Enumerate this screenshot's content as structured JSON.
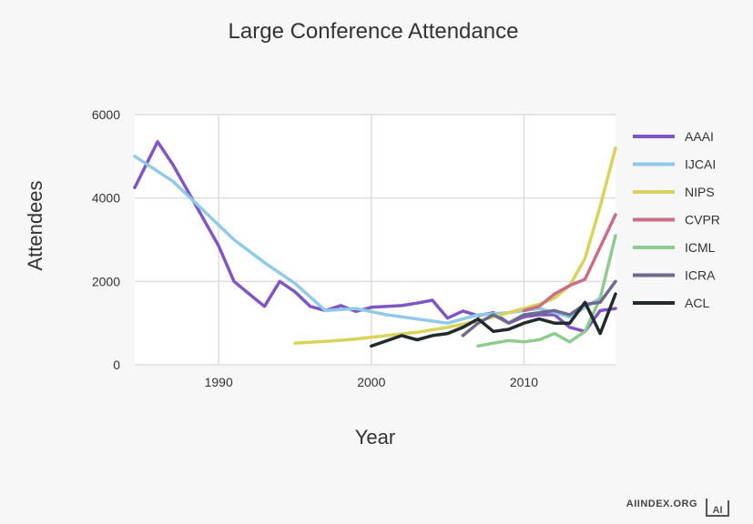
{
  "chart_data": {
    "type": "line",
    "title": "Large Conference Attendance",
    "xlabel": "Year",
    "ylabel": "Attendees",
    "xlim": [
      1984.5,
      2016
    ],
    "ylim": [
      0,
      6000
    ],
    "x_ticks": [
      1990,
      2000,
      2010
    ],
    "y_ticks": [
      0,
      2000,
      4000,
      6000
    ],
    "grid": true,
    "legend_position": "right",
    "series": [
      {
        "name": "AAAI",
        "color": "#7e57c2",
        "points": [
          [
            1984.5,
            4250
          ],
          [
            1986,
            5350
          ],
          [
            1987,
            4800
          ],
          [
            1988,
            4150
          ],
          [
            1989,
            3500
          ],
          [
            1990,
            2850
          ],
          [
            1991,
            2000
          ],
          [
            1992,
            1700
          ],
          [
            1993,
            1400
          ],
          [
            1994,
            2000
          ],
          [
            1995,
            1750
          ],
          [
            1996,
            1400
          ],
          [
            1997,
            1300
          ],
          [
            1998,
            1420
          ],
          [
            1999,
            1280
          ],
          [
            2000,
            1380
          ],
          [
            2002,
            1420
          ],
          [
            2003,
            1480
          ],
          [
            2004,
            1550
          ],
          [
            2005,
            1120
          ],
          [
            2006,
            1290
          ],
          [
            2007,
            1180
          ],
          [
            2008,
            1250
          ],
          [
            2009,
            1000
          ],
          [
            2010,
            1150
          ],
          [
            2011,
            1200
          ],
          [
            2012,
            1200
          ],
          [
            2013,
            900
          ],
          [
            2014,
            800
          ],
          [
            2015,
            1300
          ],
          [
            2016,
            1350
          ]
        ]
      },
      {
        "name": "IJCAI",
        "color": "#90cae6",
        "points": [
          [
            1984.5,
            5000
          ],
          [
            1987,
            4400
          ],
          [
            1989,
            3700
          ],
          [
            1991,
            3000
          ],
          [
            1993,
            2450
          ],
          [
            1995,
            1950
          ],
          [
            1997,
            1300
          ],
          [
            1999,
            1350
          ],
          [
            2001,
            1200
          ],
          [
            2003,
            1100
          ],
          [
            2005,
            1000
          ],
          [
            2007,
            1200
          ],
          [
            2009,
            1250
          ],
          [
            2011,
            1350
          ],
          [
            2013,
            1150
          ],
          [
            2015,
            1600
          ]
        ]
      },
      {
        "name": "NIPS",
        "color": "#d8d35b",
        "points": [
          [
            1995,
            520
          ],
          [
            1997,
            560
          ],
          [
            1999,
            620
          ],
          [
            2001,
            700
          ],
          [
            2003,
            780
          ],
          [
            2005,
            900
          ],
          [
            2007,
            1050
          ],
          [
            2009,
            1250
          ],
          [
            2011,
            1450
          ],
          [
            2012,
            1600
          ],
          [
            2013,
            1900
          ],
          [
            2014,
            2550
          ],
          [
            2015,
            3800
          ],
          [
            2016,
            5200
          ]
        ]
      },
      {
        "name": "CVPR",
        "color": "#c96d89",
        "points": [
          [
            2010,
            1300
          ],
          [
            2011,
            1400
          ],
          [
            2012,
            1700
          ],
          [
            2013,
            1900
          ],
          [
            2014,
            2050
          ],
          [
            2016,
            3600
          ]
        ]
      },
      {
        "name": "ICML",
        "color": "#8fcb8c",
        "points": [
          [
            2007,
            450
          ],
          [
            2008,
            520
          ],
          [
            2009,
            580
          ],
          [
            2010,
            550
          ],
          [
            2011,
            600
          ],
          [
            2012,
            750
          ],
          [
            2013,
            550
          ],
          [
            2014,
            800
          ],
          [
            2015,
            1600
          ],
          [
            2016,
            3100
          ]
        ]
      },
      {
        "name": "ICRA",
        "color": "#6e6a8f",
        "points": [
          [
            2006,
            700
          ],
          [
            2007,
            1000
          ],
          [
            2008,
            1200
          ],
          [
            2009,
            1000
          ],
          [
            2010,
            1200
          ],
          [
            2011,
            1250
          ],
          [
            2012,
            1300
          ],
          [
            2013,
            1200
          ],
          [
            2014,
            1450
          ],
          [
            2015,
            1500
          ],
          [
            2016,
            2000
          ]
        ]
      },
      {
        "name": "ACL",
        "color": "#222a2d",
        "points": [
          [
            2000,
            450
          ],
          [
            2002,
            700
          ],
          [
            2003,
            600
          ],
          [
            2004,
            700
          ],
          [
            2005,
            750
          ],
          [
            2006,
            900
          ],
          [
            2007,
            1100
          ],
          [
            2008,
            800
          ],
          [
            2009,
            850
          ],
          [
            2010,
            1000
          ],
          [
            2011,
            1100
          ],
          [
            2012,
            1000
          ],
          [
            2013,
            1000
          ],
          [
            2014,
            1500
          ],
          [
            2015,
            750
          ],
          [
            2016,
            1700
          ]
        ]
      }
    ]
  },
  "watermark": {
    "text": "AIINDEX.ORG",
    "logo_text": "AI"
  }
}
